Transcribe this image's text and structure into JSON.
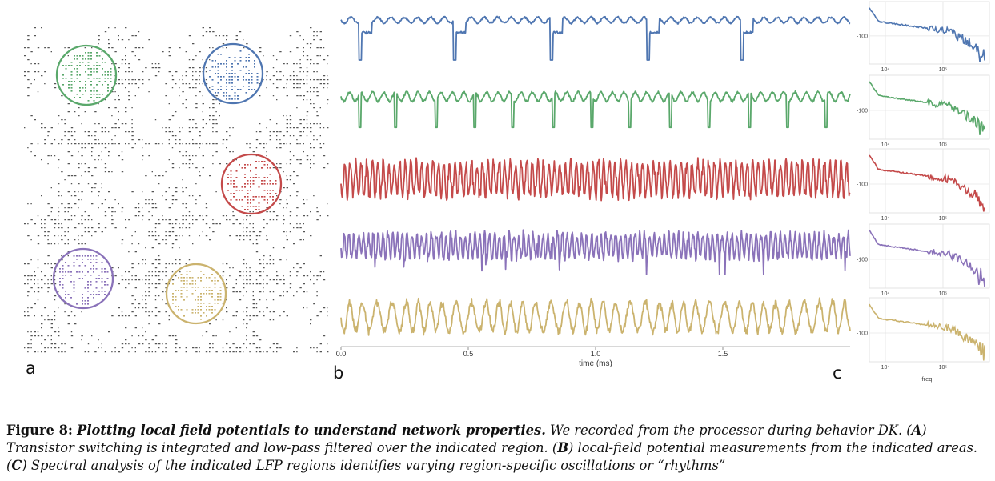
{
  "panel_labels": {
    "a": "a",
    "b": "b",
    "c": "c"
  },
  "colors": {
    "blue": "#4f76b1",
    "green": "#5aa86b",
    "red": "#c44a4a",
    "purple": "#8a72b9",
    "gold": "#cbb36e"
  },
  "chart_data": [
    {
      "type": "scatter",
      "panel": "a",
      "description_regions": [
        {
          "name": "green",
          "color": "#5aa86b"
        },
        {
          "name": "blue",
          "color": "#4f76b1"
        },
        {
          "name": "red",
          "color": "#c44a4a"
        },
        {
          "name": "purple",
          "color": "#8a72b9"
        },
        {
          "name": "gold",
          "color": "#cbb36e"
        }
      ]
    },
    {
      "type": "line",
      "panel": "b",
      "xlabel": "time (ms)",
      "xlim": [
        0.0,
        2.0
      ],
      "xticks": [
        "0.0",
        "0.5",
        "1.0",
        "1.5"
      ],
      "xtick_values": [
        0.0,
        0.5,
        1.0,
        1.5
      ],
      "series": [
        {
          "color": "#4f76b1",
          "pattern": "periodic dips",
          "dip_times": [
            0.07,
            0.44,
            0.82,
            1.2,
            1.57
          ]
        },
        {
          "color": "#5aa86b",
          "pattern": "periodic dips",
          "dip_times": [
            0.07,
            0.21,
            0.37,
            0.52,
            0.67,
            0.83,
            0.98,
            1.13,
            1.29,
            1.44,
            1.6,
            1.75,
            1.9
          ]
        },
        {
          "color": "#c44a4a",
          "pattern": "dense oscillation"
        },
        {
          "color": "#8a72b9",
          "pattern": "dense noisy oscillation"
        },
        {
          "color": "#cbb36e",
          "pattern": "slow oscillation"
        }
      ]
    },
    {
      "type": "line",
      "panel": "c",
      "xlabel": "freq",
      "xscale": "log",
      "xticks": [
        "10⁴",
        "10⁵"
      ],
      "yticks": [
        "-100"
      ],
      "series": [
        {
          "color": "#4f76b1"
        },
        {
          "color": "#5aa86b"
        },
        {
          "color": "#c44a4a"
        },
        {
          "color": "#8a72b9"
        },
        {
          "color": "#cbb36e"
        }
      ]
    }
  ],
  "caption": {
    "label": "Figure 8:",
    "title": "Plotting local field potentials to understand network properties.",
    "body_parts": [
      " We recorded from the processor during behavior DK. (",
      "A",
      ") Transistor switching is integrated and low-pass filtered over the indicated region. (",
      "B",
      ") local-field potential measurements from the indicated areas. (",
      "C",
      ") Spectral analysis of the indicated LFP regions identifies varying region-specific oscillations or “rhythms”"
    ]
  }
}
